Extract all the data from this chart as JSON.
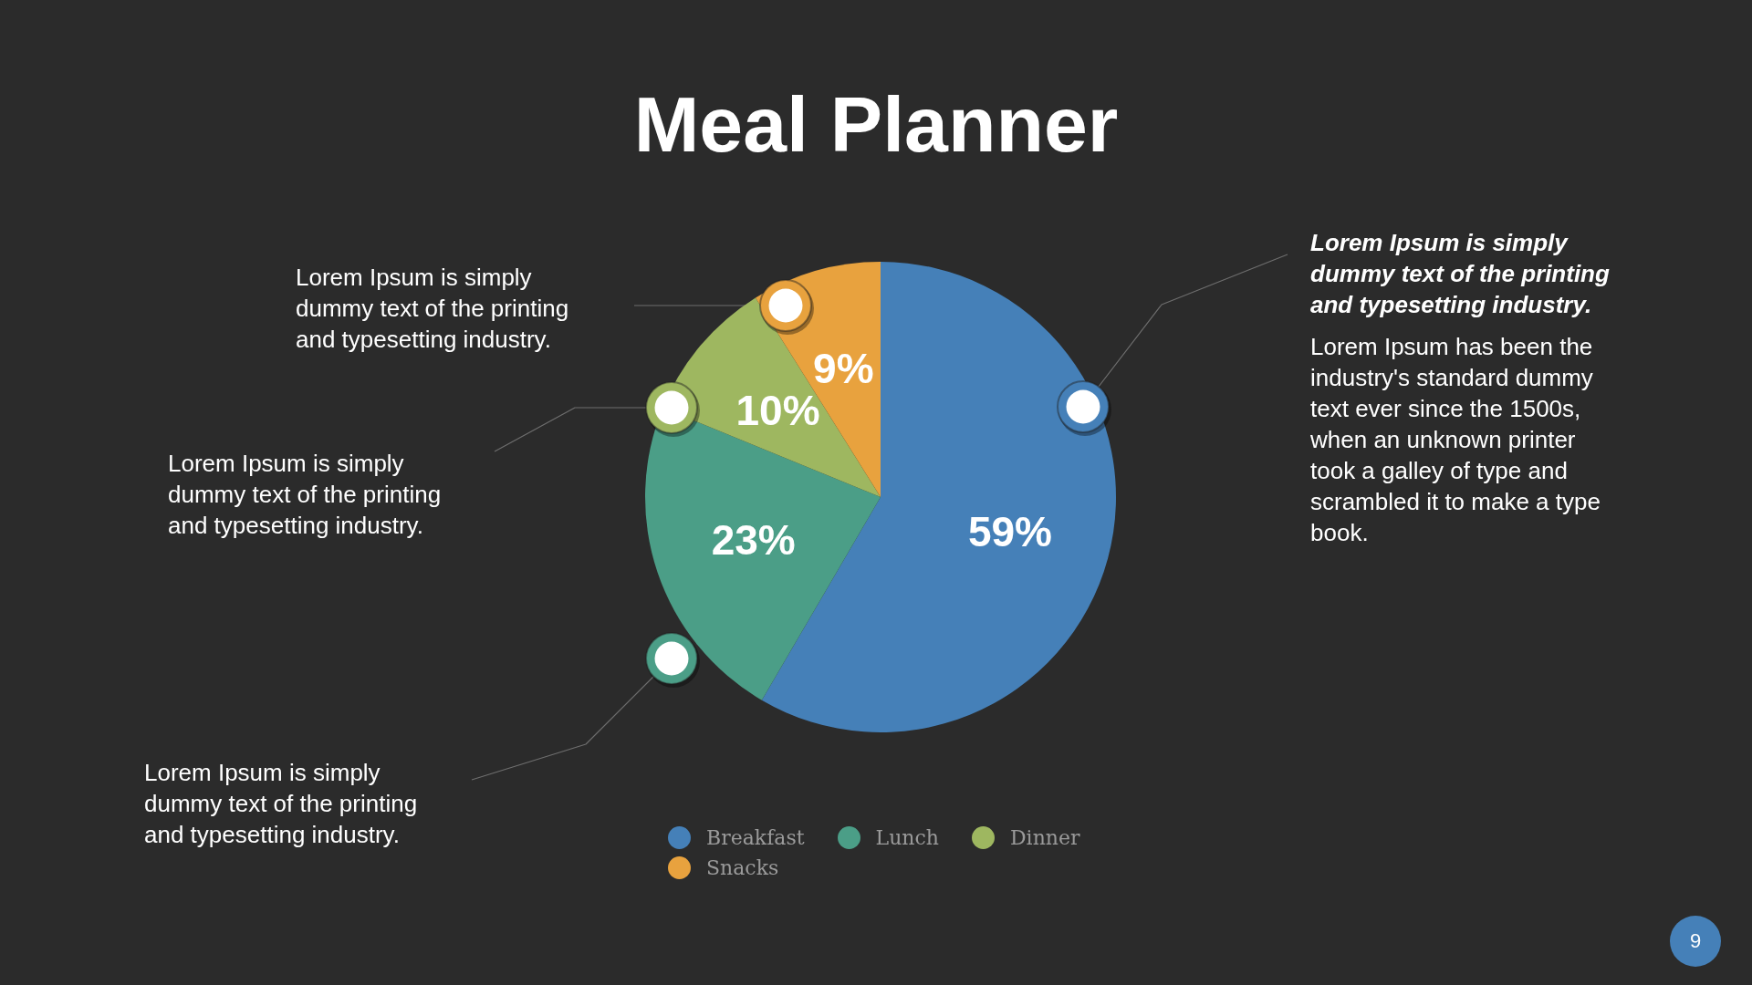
{
  "chart_data": {
    "type": "pie",
    "title": "Meal Planner",
    "categories": [
      "Breakfast",
      "Lunch",
      "Dinner",
      "Snacks"
    ],
    "values": [
      59,
      23,
      10,
      9
    ],
    "colors": [
      "#4580b8",
      "#4b9e87",
      "#9eb760",
      "#e8a23e"
    ],
    "value_labels": [
      "59%",
      "23%",
      "10%",
      "9%"
    ],
    "legend": "bottom",
    "annotations": [
      "Lorem Ipsum is simply dummy text of the printing and typesetting industry.",
      "Lorem Ipsum has been the industry's standard dummy text ever since the 1500s, when an unknown printer took a galley of type and scrambled it to make a type book.",
      "Lorem Ipsum is simply dummy text of the printing and typesetting industry.",
      "Lorem Ipsum is simply dummy text of the printing and typesetting industry.",
      "Lorem Ipsum is simply dummy text of the printing and typesetting industry.",
      "9"
    ]
  }
}
